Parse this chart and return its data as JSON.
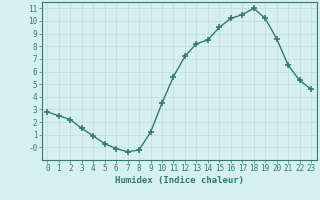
{
  "xlabel": "Humidex (Indice chaleur)",
  "ylabel": "",
  "x": [
    0,
    1,
    2,
    3,
    4,
    5,
    6,
    7,
    8,
    9,
    10,
    11,
    12,
    13,
    14,
    15,
    16,
    17,
    18,
    19,
    20,
    21,
    22,
    23
  ],
  "y": [
    2.8,
    2.5,
    2.2,
    1.5,
    0.9,
    0.3,
    -0.1,
    -0.35,
    -0.2,
    1.2,
    3.5,
    5.6,
    7.2,
    8.2,
    8.5,
    9.5,
    10.2,
    10.5,
    11.0,
    10.2,
    8.6,
    6.5,
    5.3,
    4.6
  ],
  "line_color": "#2e7d6e",
  "marker": "+",
  "marker_size": 4,
  "marker_lw": 1.2,
  "bg_color": "#d6f0ef",
  "grid_color": "#c0dbd8",
  "xlim": [
    -0.5,
    23.5
  ],
  "ylim": [
    -1.0,
    11.5
  ],
  "yticks": [
    0,
    1,
    2,
    3,
    4,
    5,
    6,
    7,
    8,
    9,
    10,
    11
  ],
  "ytick_labels": [
    "-0",
    "1",
    "2",
    "3",
    "4",
    "5",
    "6",
    "7",
    "8",
    "9",
    "10",
    "11"
  ],
  "xticks": [
    0,
    1,
    2,
    3,
    4,
    5,
    6,
    7,
    8,
    9,
    10,
    11,
    12,
    13,
    14,
    15,
    16,
    17,
    18,
    19,
    20,
    21,
    22,
    23
  ],
  "tick_fontsize": 5.5,
  "label_fontsize": 6.5,
  "line_width": 1.0
}
